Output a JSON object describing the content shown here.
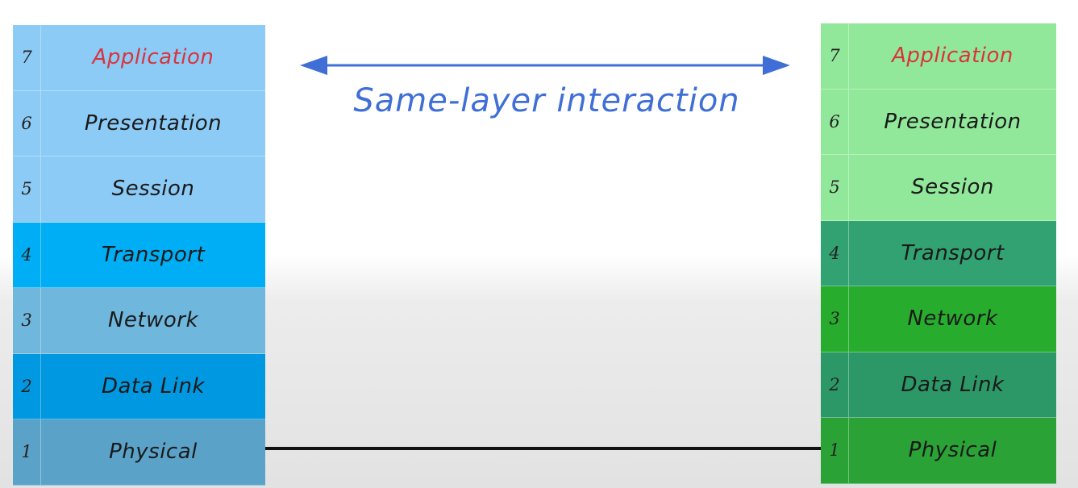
{
  "left_stack": {
    "layers": [
      {
        "number": "7",
        "name": "Application"
      },
      {
        "number": "6",
        "name": "Presentation"
      },
      {
        "number": "5",
        "name": "Session"
      },
      {
        "number": "4",
        "name": "Transport"
      },
      {
        "number": "3",
        "name": "Network"
      },
      {
        "number": "2",
        "name": "Data Link"
      },
      {
        "number": "1",
        "name": "Physical"
      }
    ]
  },
  "right_stack": {
    "layers": [
      {
        "number": "7",
        "name": "Application"
      },
      {
        "number": "6",
        "name": "Presentation"
      },
      {
        "number": "5",
        "name": "Session"
      },
      {
        "number": "4",
        "name": "Transport"
      },
      {
        "number": "3",
        "name": "Network"
      },
      {
        "number": "2",
        "name": "Data Link"
      },
      {
        "number": "1",
        "name": "Physical"
      }
    ]
  },
  "arrow": {
    "caption": "Same-layer interaction"
  },
  "colors": {
    "highlight_text": "#d8343c",
    "arrow": "#3f6fd6",
    "link": "#111111"
  }
}
